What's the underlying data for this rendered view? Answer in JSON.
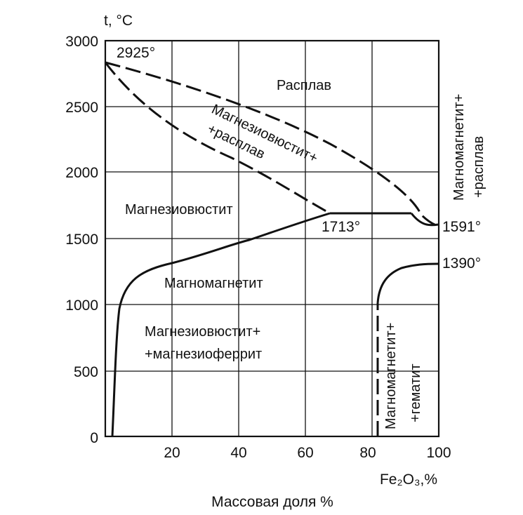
{
  "diagram": {
    "y_axis": {
      "title": "t, °C",
      "range": [
        0,
        3000
      ],
      "ticks": [
        "0",
        "500",
        "1000",
        "1500",
        "2000",
        "2500",
        "3000"
      ]
    },
    "x_axis": {
      "title": "Fe₂O₃,%",
      "subtitle": "Массовая доля %",
      "range": [
        0,
        100
      ],
      "ticks": [
        "20",
        "40",
        "60",
        "80",
        "100"
      ]
    },
    "grid": true,
    "temperatures": {
      "t2925": "2925°",
      "t1713": "1713°",
      "t1591": "1591°",
      "t1390": "1390°"
    },
    "regions": {
      "melt": "Расплав",
      "mw_melt_1": "Магнезиовюстит+",
      "mw_melt_2": "+расплав",
      "magnesiowustite": "Магнезиовюстит",
      "magnomagnetite": "Магномагнетит",
      "mw_mf_1": "Магнезиовюстит+",
      "mw_mf_2": "+магнезиоферрит",
      "mm_melt_1": "Магномагнетит+",
      "mm_melt_2": "+расплав",
      "mm_hem_1": "Магномагнетит+",
      "mm_hem_2": "+гематит"
    },
    "colors": {
      "line": "#111111",
      "grid": "#111111",
      "background": "#ffffff"
    }
  }
}
